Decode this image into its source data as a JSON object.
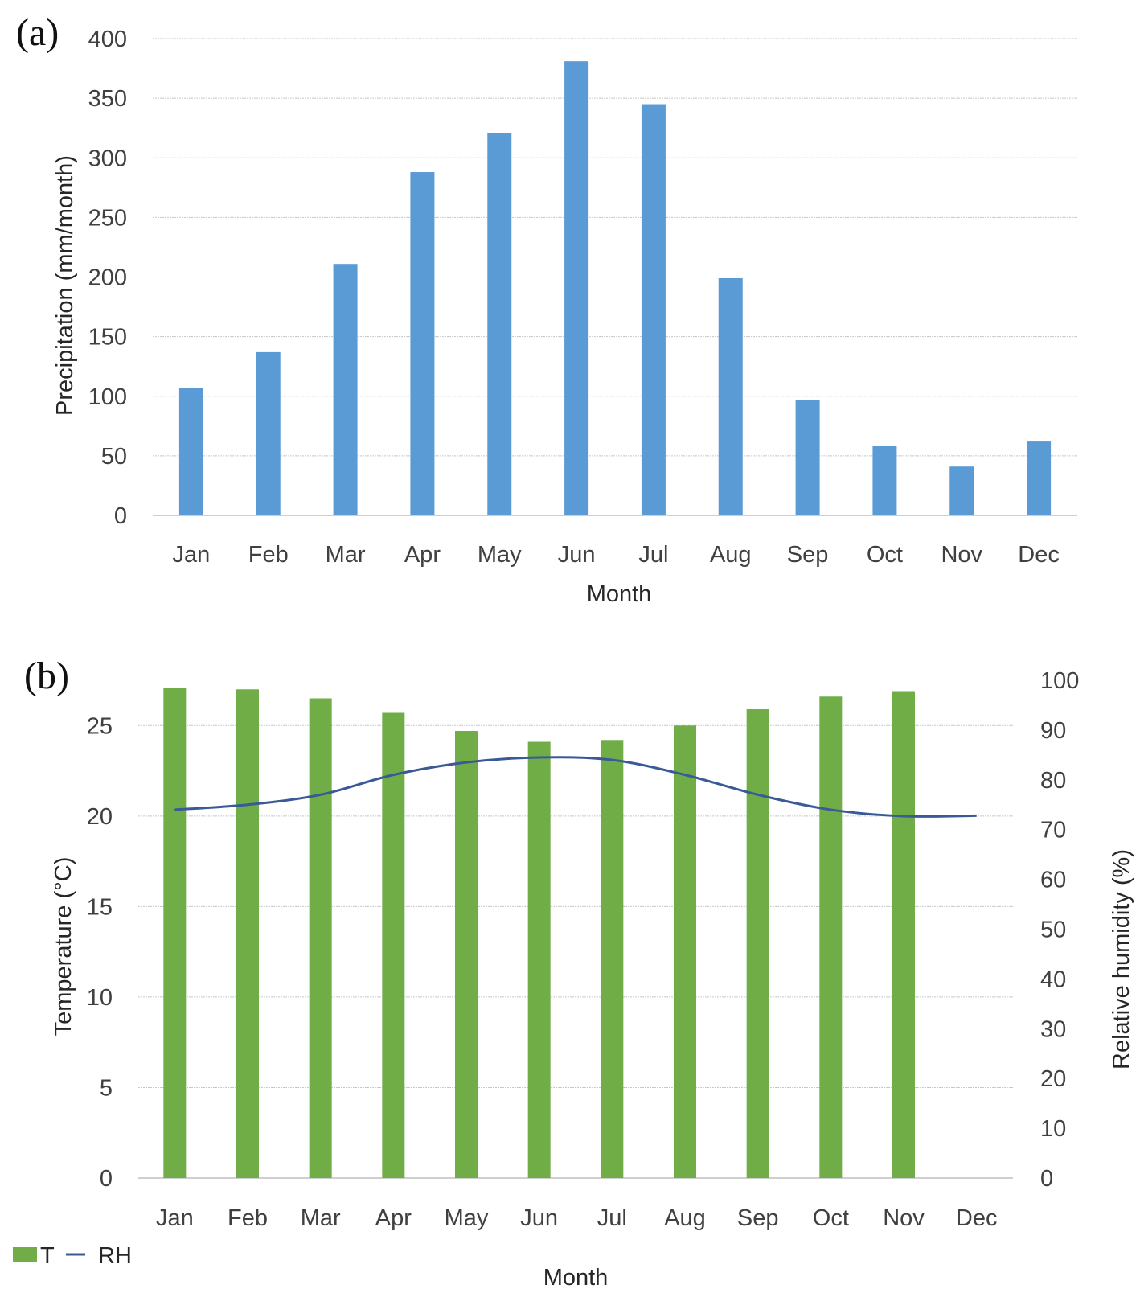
{
  "chart_data": [
    {
      "panel_label": "(a)",
      "type": "bar",
      "categories": [
        "Jan",
        "Feb",
        "Mar",
        "Apr",
        "May",
        "Jun",
        "Jul",
        "Aug",
        "Sep",
        "Oct",
        "Nov",
        "Dec"
      ],
      "series": [
        {
          "name": "Precipitation",
          "values": [
            107,
            137,
            211,
            288,
            321,
            381,
            345,
            199,
            97,
            58,
            41,
            62
          ],
          "color": "#5b9bd5"
        }
      ],
      "title": "",
      "xlabel": "Month",
      "ylabel": "Precipitation (mm/month)",
      "ylim": [
        0,
        400
      ],
      "yticks": [
        "0",
        "50",
        "100",
        "150",
        "200",
        "250",
        "300",
        "350",
        "400"
      ],
      "grid": true
    },
    {
      "panel_label": "(b)",
      "type": "bar",
      "categories": [
        "Jan",
        "Feb",
        "Mar",
        "Apr",
        "May",
        "Jun",
        "Jul",
        "Aug",
        "Sep",
        "Oct",
        "Nov",
        "Dec"
      ],
      "series": [
        {
          "name": "T",
          "kind": "bar",
          "axis": "left",
          "values": [
            27.1,
            27.0,
            26.5,
            25.7,
            24.7,
            24.1,
            24.2,
            25.0,
            25.9,
            26.6,
            26.9,
            null
          ],
          "color": "#70ad47"
        },
        {
          "name": "RH",
          "kind": "line",
          "axis": "right",
          "values": [
            74,
            75,
            77,
            81,
            83.5,
            84.5,
            84,
            81,
            77,
            74,
            72.7,
            72.8
          ],
          "color": "#3a5a97"
        }
      ],
      "title": "",
      "xlabel": "Month",
      "ylabel": "Temperature (°C)",
      "ylabel_right": "Relative humidity (%)",
      "ylim": [
        0,
        27.5
      ],
      "ylim_right": [
        0,
        100
      ],
      "yticks": [
        "0",
        "5",
        "10",
        "15",
        "20",
        "25"
      ],
      "yticks_right": [
        "0",
        "10",
        "20",
        "30",
        "40",
        "50",
        "60",
        "70",
        "80",
        "90",
        "100"
      ],
      "grid": true,
      "legend": {
        "position": "bottom-left",
        "entries": [
          "T",
          "RH"
        ]
      }
    }
  ]
}
